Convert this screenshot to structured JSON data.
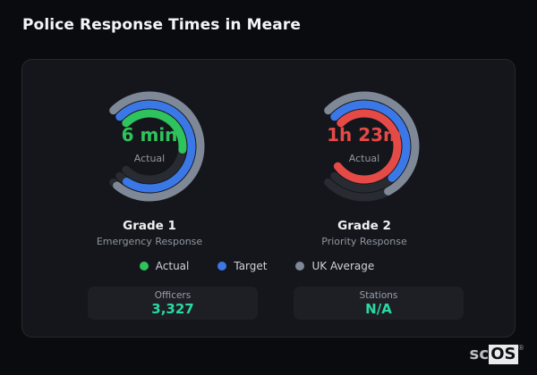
{
  "page": {
    "title": "Police Response Times in Meare"
  },
  "colors": {
    "background": "#0a0b0e",
    "card_bg": "#15161b",
    "card_border": "#26282f",
    "track": "#282b31",
    "actual_good": "#2fc35d",
    "actual_bad": "#e54a47",
    "target": "#3b78e7",
    "uk_average": "#7e8897",
    "stat_accent": "#2bd8a3",
    "muted_text": "#8f96a0",
    "white_text": "#eef0f2"
  },
  "chart_data": [
    {
      "type": "gauge",
      "name": "Grade 1",
      "subtitle": "Emergency Response",
      "center_value": "6 min",
      "center_label": "Actual",
      "value_color": "#2fc35d",
      "start_angle_deg": 135,
      "range_sweep_deg": 270,
      "rings": [
        {
          "name": "UK Average",
          "color": "#7e8897",
          "fraction_of_range": 0.98,
          "radius": 57
        },
        {
          "name": "Target",
          "color": "#3b78e7",
          "fraction_of_range": 0.955,
          "radius": 47
        },
        {
          "name": "Actual",
          "color": "#2fc35d",
          "fraction_of_range": 0.52,
          "radius": 37
        }
      ]
    },
    {
      "type": "gauge",
      "name": "Grade 2",
      "subtitle": "Priority Response",
      "center_value": "1h 23m",
      "center_label": "Actual",
      "value_color": "#e54a47",
      "start_angle_deg": 135,
      "range_sweep_deg": 270,
      "rings": [
        {
          "name": "UK Average",
          "color": "#7e8897",
          "fraction_of_range": 0.73,
          "radius": 57
        },
        {
          "name": "Target",
          "color": "#3b78e7",
          "fraction_of_range": 0.68,
          "radius": 47
        },
        {
          "name": "Actual",
          "color": "#e54a47",
          "fraction_of_range": 1.03,
          "radius": 37
        }
      ]
    }
  ],
  "legend": {
    "items": [
      {
        "label": "Actual",
        "color": "#2fc35d"
      },
      {
        "label": "Target",
        "color": "#3b78e7"
      },
      {
        "label": "UK Average",
        "color": "#7e8897"
      }
    ]
  },
  "stats": {
    "items": [
      {
        "label": "Officers",
        "value": "3,327"
      },
      {
        "label": "Stations",
        "value": "N/A"
      }
    ]
  },
  "logo": {
    "prefix": "sc",
    "boxed": "OS",
    "registered": "®"
  }
}
